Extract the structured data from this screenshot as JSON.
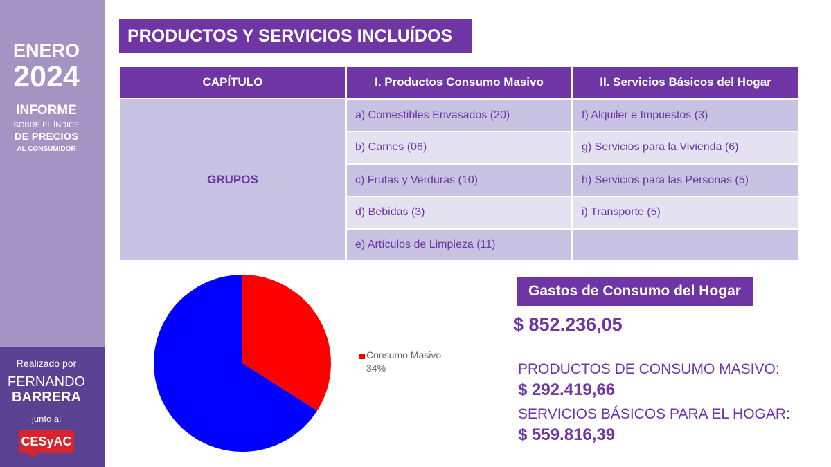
{
  "sidebar": {
    "month": "ENERO",
    "year": "2024",
    "informe": "INFORME",
    "sobre": "SOBRE EL ÍNDICE",
    "precios": "DE PRECIOS",
    "consumidor": "AL CONSUMIDOR",
    "realizado": "Realizado por",
    "name_first": "FERNANDO",
    "name_last": "BARRERA",
    "junto": "junto al",
    "logo": "CESyAC"
  },
  "title": "PRODUCTOS Y SERVICIOS INCLUÍDOS",
  "table": {
    "headers": [
      "CAPÍTULO",
      "I. Productos Consumo Masivo",
      "II. Servicios Básicos del Hogar"
    ],
    "row_label": "GRUPOS",
    "col1": [
      "a) Comestibles Envasados (20)",
      "b) Carnes (06)",
      "c) Frutas y Verduras (10)",
      "d) Bebidas (3)",
      "e) Artículos de Limpieza (11)"
    ],
    "col2": [
      "f) Alquiler e Impuestos (3)",
      "g) Servicios para la Vivienda (6)",
      "h) Servicios para las Personas (5)",
      "i) Transporte (5)",
      ""
    ]
  },
  "chart_data": {
    "type": "pie",
    "slices": [
      {
        "name": "Consumo Masivo",
        "value": 34,
        "label": "34%",
        "color": "#ff0000"
      },
      {
        "name": "",
        "value": 66,
        "color": "#0000ff"
      }
    ],
    "legend": "right"
  },
  "summary": {
    "gastos_title": "Gastos de Consumo del Hogar",
    "gastos_value": "$ 852.236,05",
    "masivo_label": "PRODUCTOS DE CONSUMO MASIVO:",
    "masivo_value": "$ 292.419,66",
    "servicios_label": "SERVICIOS BÁSICOS PARA EL HOGAR:",
    "servicios_value": "$ 559.816,39"
  },
  "colors": {
    "accent": "#6f35a5",
    "sidebar": "#a494c3",
    "sidebar_dark": "#5a4191",
    "row_light": "#e4e1f1",
    "row_mid": "#c8c3e2"
  }
}
